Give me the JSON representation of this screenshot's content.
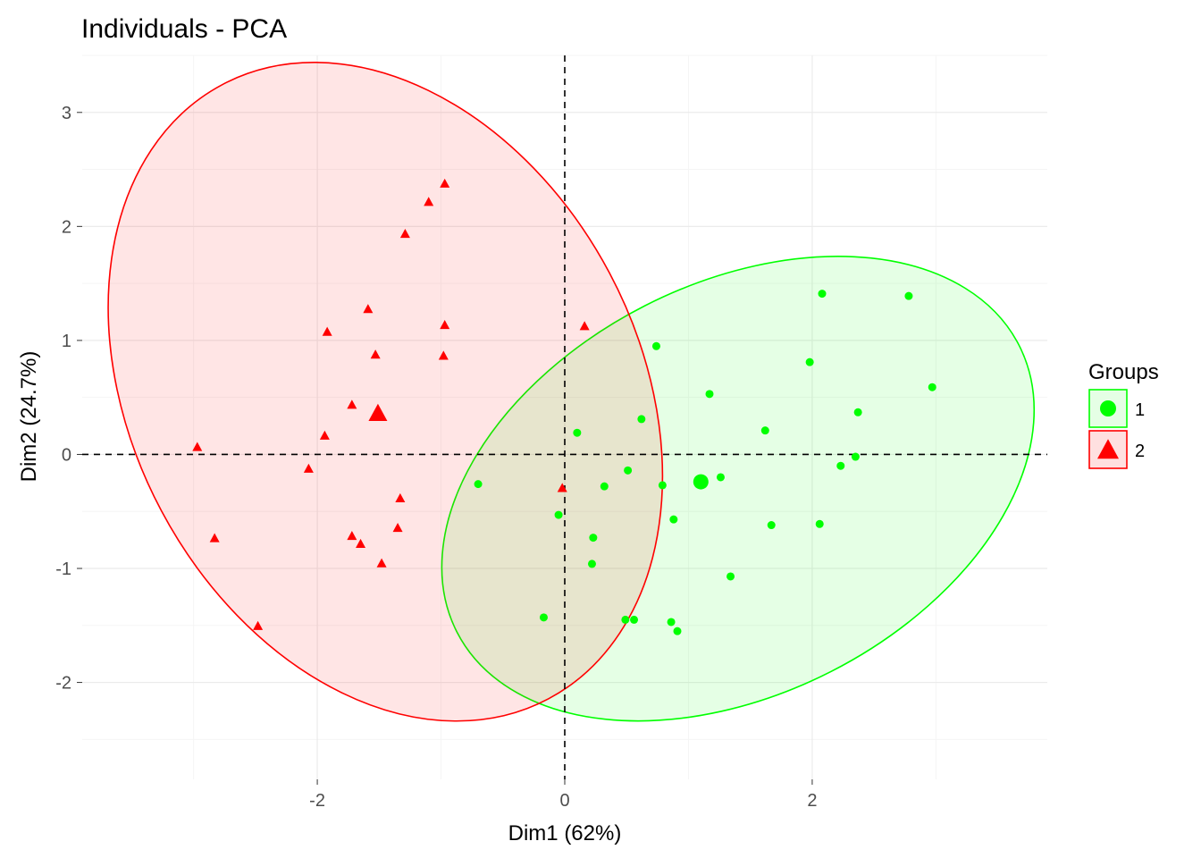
{
  "chart_data": {
    "type": "scatter",
    "title": "Individuals - PCA",
    "xlabel": "Dim1 (62%)",
    "ylabel": "Dim2 (24.7%)",
    "xlim": [
      -3.9,
      3.9
    ],
    "ylim": [
      -2.85,
      3.5
    ],
    "xticks": [
      -2,
      0,
      2
    ],
    "yticks": [
      -2,
      -1,
      0,
      1,
      2,
      3
    ],
    "grid": true,
    "legend_position": "right",
    "legend_title": "Groups",
    "series": [
      {
        "name": "1",
        "marker": "circle",
        "color": "#00FF00",
        "fill": "#E5FFE5",
        "centroid": [
          1.1,
          -0.24
        ],
        "ellipse": {
          "center": [
            1.4,
            -0.3
          ],
          "rx": 2.55,
          "ry": 1.8,
          "rotate_deg": 27
        },
        "points": [
          [
            2.08,
            1.41
          ],
          [
            2.78,
            1.39
          ],
          [
            0.74,
            0.95
          ],
          [
            1.98,
            0.81
          ],
          [
            2.97,
            0.59
          ],
          [
            1.17,
            0.53
          ],
          [
            2.37,
            0.37
          ],
          [
            0.62,
            0.31
          ],
          [
            1.62,
            0.21
          ],
          [
            0.1,
            0.19
          ],
          [
            2.35,
            -0.02
          ],
          [
            2.23,
            -0.1
          ],
          [
            1.26,
            -0.2
          ],
          [
            0.51,
            -0.14
          ],
          [
            -0.7,
            -0.26
          ],
          [
            0.32,
            -0.28
          ],
          [
            0.79,
            -0.27
          ],
          [
            -0.05,
            -0.53
          ],
          [
            0.88,
            -0.57
          ],
          [
            1.67,
            -0.62
          ],
          [
            2.06,
            -0.61
          ],
          [
            0.23,
            -0.73
          ],
          [
            0.22,
            -0.96
          ],
          [
            1.34,
            -1.07
          ],
          [
            -0.17,
            -1.43
          ],
          [
            0.49,
            -1.45
          ],
          [
            0.56,
            -1.45
          ],
          [
            0.86,
            -1.47
          ],
          [
            0.91,
            -1.55
          ]
        ]
      },
      {
        "name": "2",
        "marker": "triangle",
        "color": "#FF0000",
        "fill": "#FFE0E0",
        "centroid": [
          -1.51,
          0.35
        ],
        "ellipse": {
          "center": [
            -1.45,
            0.55
          ],
          "rx": 2.05,
          "ry": 3.05,
          "rotate_deg": 28
        },
        "points": [
          [
            -0.97,
            2.37
          ],
          [
            -1.1,
            2.21
          ],
          [
            -1.29,
            1.93
          ],
          [
            -1.59,
            1.27
          ],
          [
            -0.97,
            1.13
          ],
          [
            0.16,
            1.12
          ],
          [
            -1.92,
            1.07
          ],
          [
            -1.53,
            0.87
          ],
          [
            -0.98,
            0.86
          ],
          [
            -1.72,
            0.43
          ],
          [
            -1.94,
            0.16
          ],
          [
            -2.97,
            0.06
          ],
          [
            -2.07,
            -0.13
          ],
          [
            -0.02,
            -0.3
          ],
          [
            -1.33,
            -0.39
          ],
          [
            -1.35,
            -0.65
          ],
          [
            -1.72,
            -0.72
          ],
          [
            -1.65,
            -0.79
          ],
          [
            -2.83,
            -0.74
          ],
          [
            -1.48,
            -0.96
          ],
          [
            -2.48,
            -1.51
          ]
        ]
      }
    ]
  }
}
